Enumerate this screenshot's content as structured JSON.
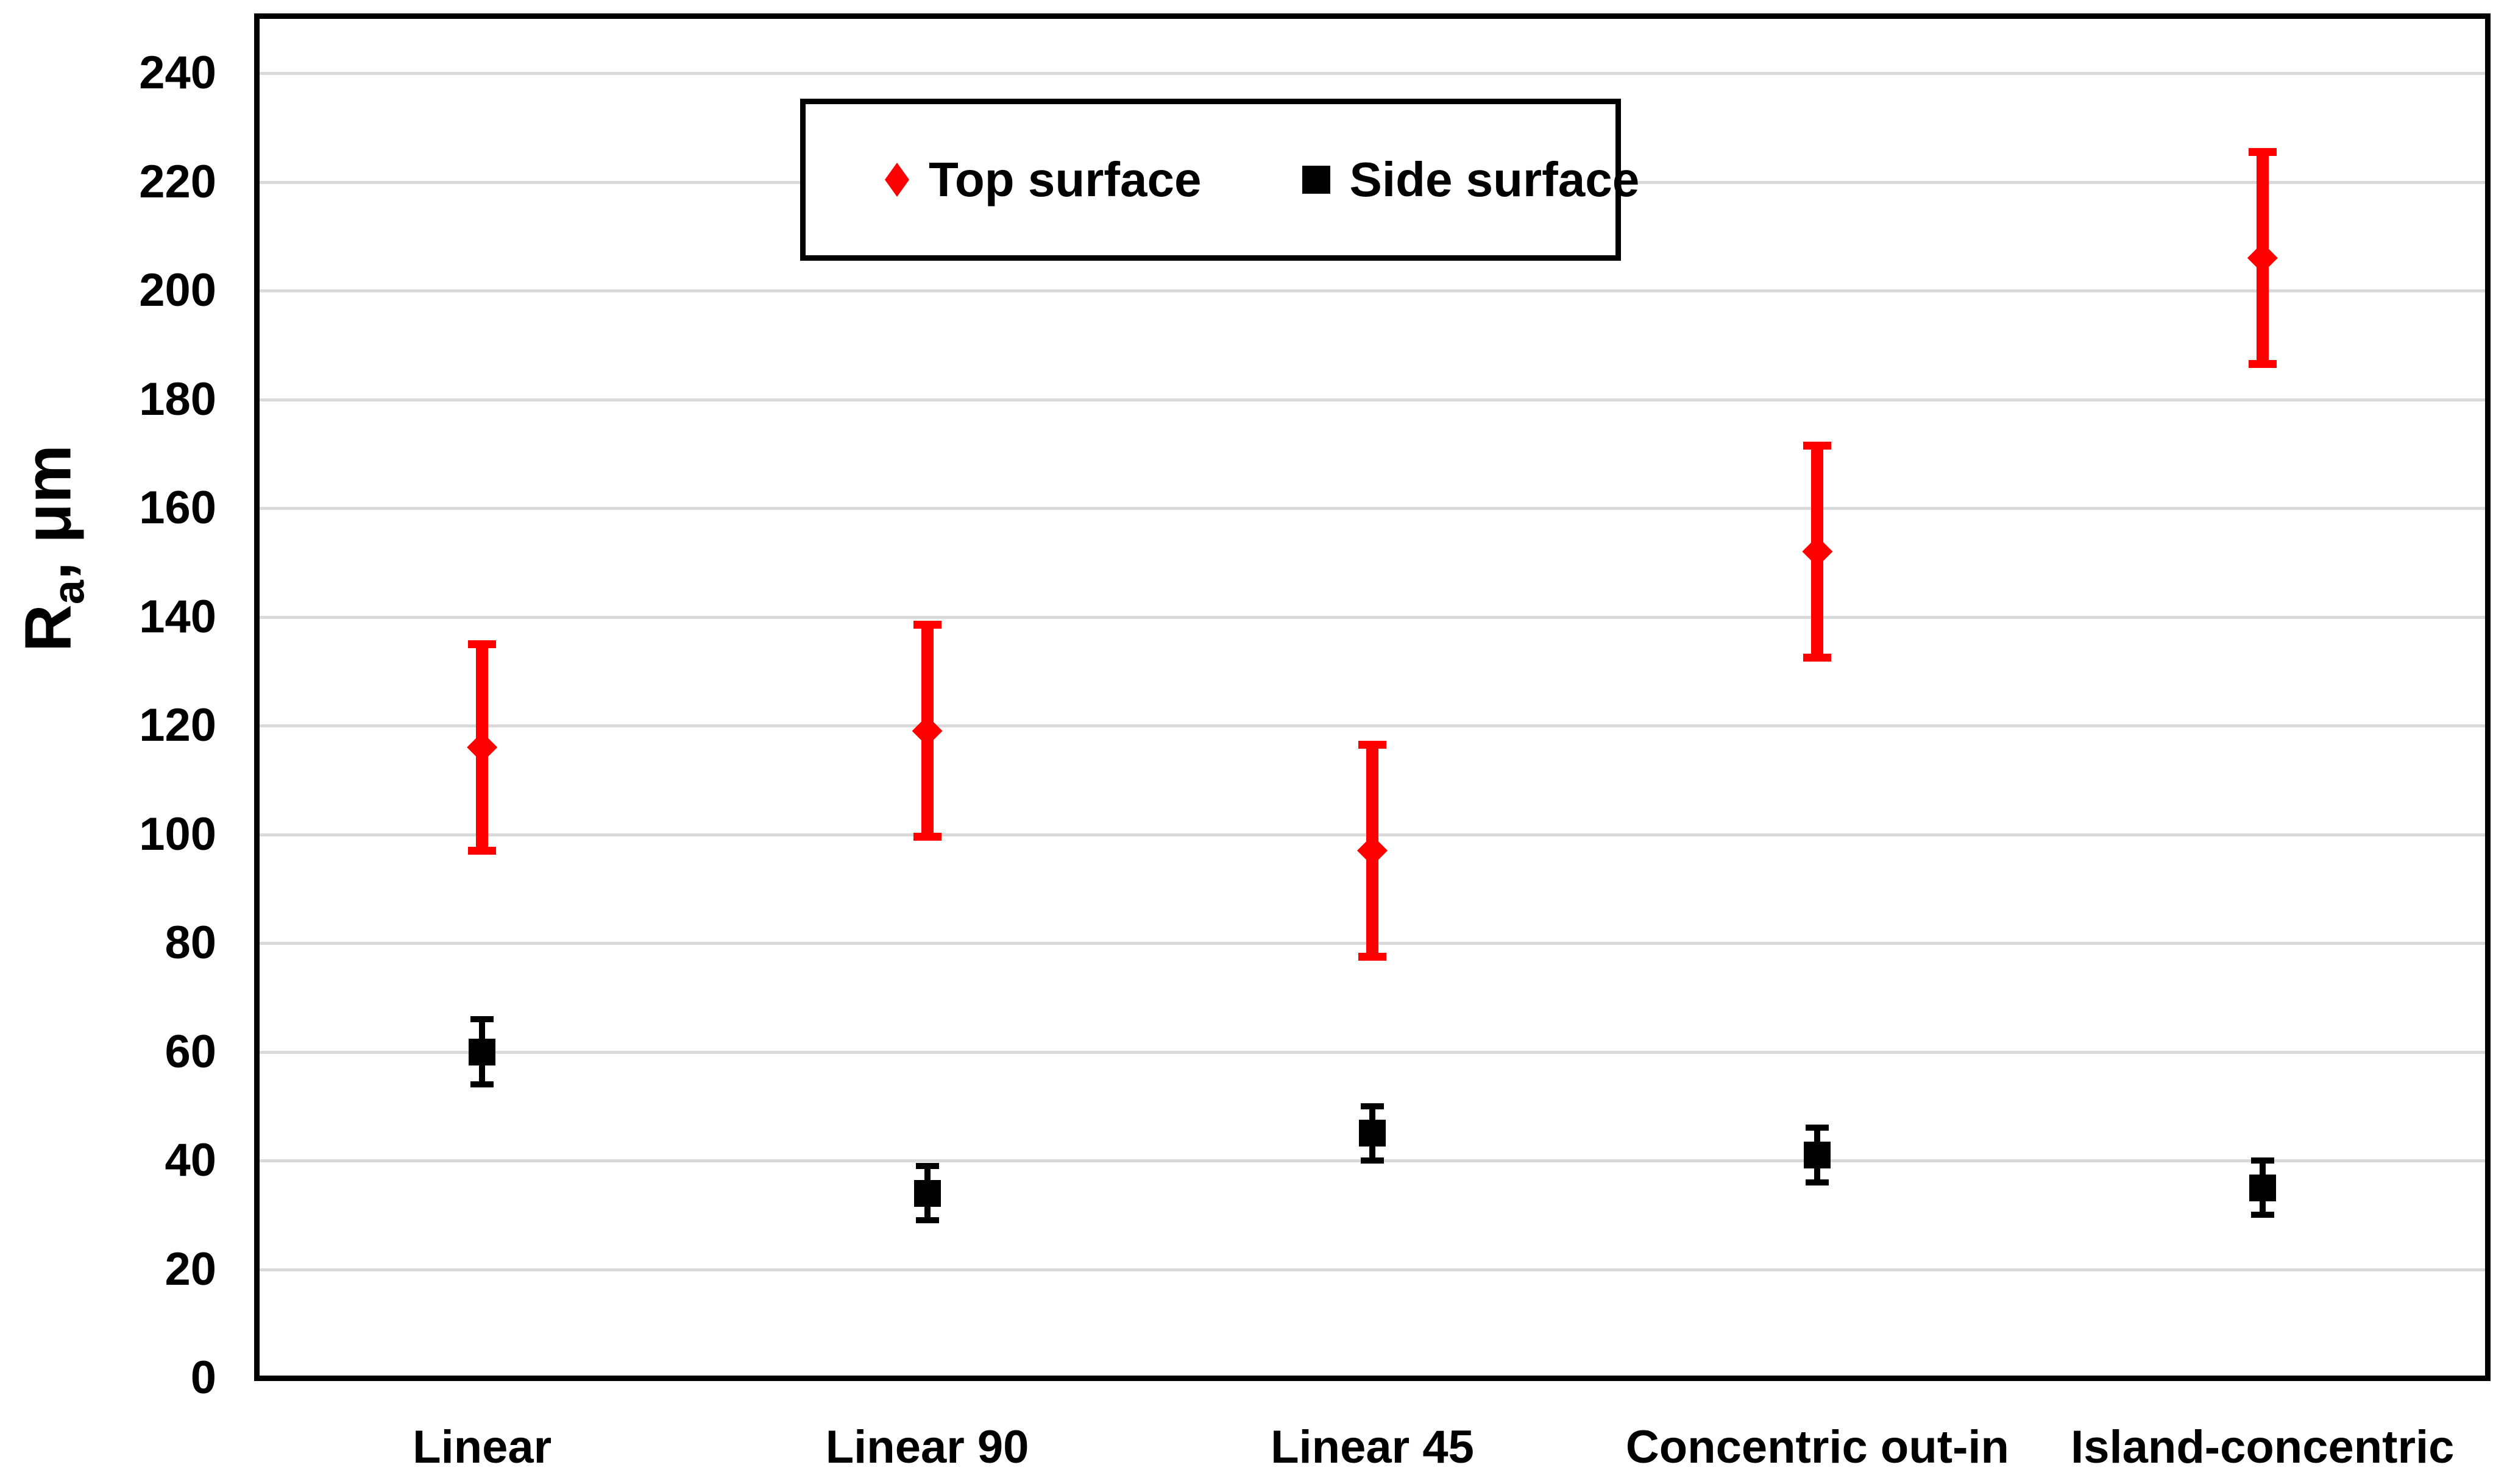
{
  "chart_data": {
    "type": "scatter",
    "title": "",
    "y_axis": {
      "label_base": "R",
      "label_subscript": "a",
      "label_suffix": ", μm",
      "min": 0,
      "max": 250,
      "tick_step": 20,
      "ticks": [
        0,
        20,
        40,
        60,
        80,
        100,
        120,
        140,
        160,
        180,
        200,
        220,
        240
      ]
    },
    "x_axis": {
      "label": ""
    },
    "categories": [
      "Linear",
      "Linear 90",
      "Linear 45",
      "Concentric out-in",
      "Island-concentric"
    ],
    "series": [
      {
        "name": "Top surface",
        "marker": "diamond",
        "color": "#FF0000",
        "values": [
          116,
          119,
          97,
          152,
          206
        ],
        "error_bars": [
          19,
          19.5,
          19.5,
          19.5,
          19.5
        ]
      },
      {
        "name": "Side surface",
        "marker": "square",
        "color": "#000000",
        "values": [
          60,
          34,
          45,
          41,
          35
        ],
        "error_bars": [
          6,
          5,
          5,
          5,
          5
        ]
      }
    ],
    "grid": {
      "horizontal": true,
      "vertical": false,
      "color": "#D9D9D9"
    },
    "legend": {
      "position": "top-center-inside",
      "border_color": "#000000",
      "background": "#FFFFFF"
    },
    "plot_border_color": "#000000",
    "background": "#FFFFFF"
  }
}
